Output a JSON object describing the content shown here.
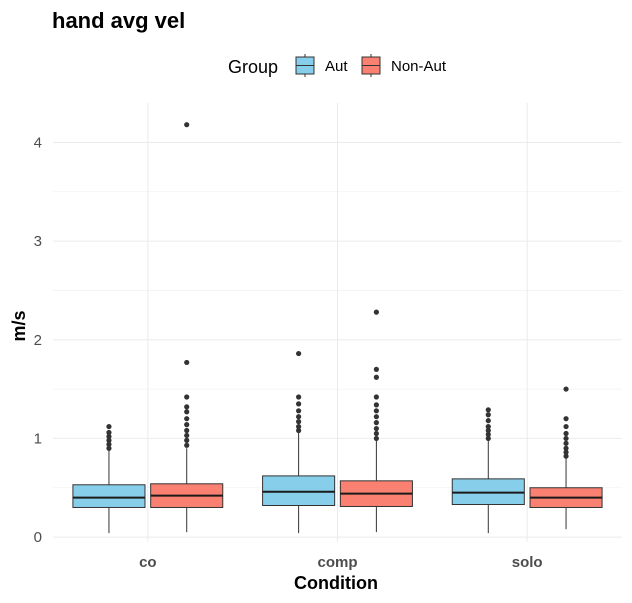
{
  "chart_data": {
    "type": "boxplot",
    "title": "hand avg vel",
    "xlabel": "Condition",
    "ylabel": "m/s",
    "legend": {
      "title": "Group",
      "position": "top",
      "entries": [
        "Aut",
        "Non-Aut"
      ]
    },
    "categories": [
      "co",
      "comp",
      "solo"
    ],
    "ylim": [
      -0.05,
      4.4
    ],
    "y_ticks": [
      0,
      1,
      2,
      3,
      4
    ],
    "grid": true,
    "colors": {
      "Aut": "#87CEEB",
      "Non-Aut": "#FA8072"
    },
    "series": [
      {
        "name": "Aut",
        "boxes": [
          {
            "category": "co",
            "whisker_low": 0.04,
            "q1": 0.3,
            "median": 0.4,
            "q3": 0.53,
            "whisker_high": 0.88,
            "outliers": [
              0.9,
              0.94,
              0.98,
              1.02,
              1.06,
              1.12
            ]
          },
          {
            "category": "comp",
            "whisker_low": 0.04,
            "q1": 0.32,
            "median": 0.46,
            "q3": 0.62,
            "whisker_high": 1.06,
            "outliers": [
              1.08,
              1.12,
              1.17,
              1.22,
              1.28,
              1.35,
              1.42,
              1.86
            ]
          },
          {
            "category": "solo",
            "whisker_low": 0.04,
            "q1": 0.33,
            "median": 0.45,
            "q3": 0.59,
            "whisker_high": 0.98,
            "outliers": [
              1.0,
              1.04,
              1.08,
              1.12,
              1.18,
              1.24,
              1.29
            ]
          }
        ]
      },
      {
        "name": "Non-Aut",
        "boxes": [
          {
            "category": "co",
            "whisker_low": 0.05,
            "q1": 0.3,
            "median": 0.42,
            "q3": 0.54,
            "whisker_high": 0.9,
            "outliers": [
              0.93,
              0.98,
              1.03,
              1.08,
              1.14,
              1.2,
              1.27,
              1.32,
              1.42,
              1.77,
              4.18
            ]
          },
          {
            "category": "comp",
            "whisker_low": 0.05,
            "q1": 0.31,
            "median": 0.44,
            "q3": 0.57,
            "whisker_high": 0.98,
            "outliers": [
              1.0,
              1.05,
              1.1,
              1.16,
              1.22,
              1.28,
              1.34,
              1.42,
              1.62,
              1.7,
              2.28
            ]
          },
          {
            "category": "solo",
            "whisker_low": 0.08,
            "q1": 0.3,
            "median": 0.4,
            "q3": 0.5,
            "whisker_high": 0.8,
            "outliers": [
              0.82,
              0.86,
              0.9,
              0.95,
              1.0,
              1.05,
              1.12,
              1.2,
              1.5
            ]
          }
        ]
      }
    ]
  }
}
